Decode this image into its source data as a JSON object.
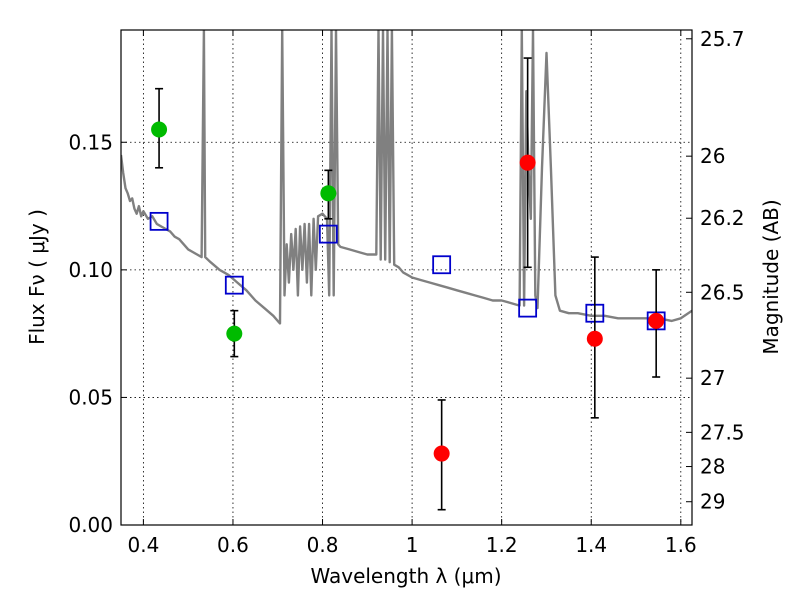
{
  "chart_data": {
    "type": "scatter",
    "title": "",
    "xlabel": "Wavelength  λ (μm)",
    "ylabel": "Flux  Fν  ( μJy )",
    "y2label": "Magnitude (AB)",
    "xlim": [
      0.35,
      1.625
    ],
    "ylim": [
      0.0,
      0.194
    ],
    "grid": true,
    "xticks": [
      {
        "value": 0.4,
        "label": "0.4"
      },
      {
        "value": 0.6,
        "label": "0.6"
      },
      {
        "value": 0.8,
        "label": "0.8"
      },
      {
        "value": 1.0,
        "label": "1"
      },
      {
        "value": 1.2,
        "label": "1.2"
      },
      {
        "value": 1.4,
        "label": "1.4"
      },
      {
        "value": 1.6,
        "label": "1.6"
      }
    ],
    "yticks": [
      {
        "value": 0.0,
        "label": "0.00"
      },
      {
        "value": 0.05,
        "label": "0.05"
      },
      {
        "value": 0.1,
        "label": "0.10"
      },
      {
        "value": 0.15,
        "label": "0.15"
      }
    ],
    "magnitude_ticks": [
      {
        "value": 25.7,
        "label": "25.7"
      },
      {
        "value": 26.0,
        "label": "26"
      },
      {
        "value": 26.2,
        "label": "26.2"
      },
      {
        "value": 26.5,
        "label": "26.5"
      },
      {
        "value": 27.0,
        "label": "27"
      },
      {
        "value": 27.5,
        "label": "27.5"
      },
      {
        "value": 28.0,
        "label": "28"
      },
      {
        "value": 29.0,
        "label": "29"
      }
    ],
    "colors": {
      "model": "#808080",
      "green": "#00bb00",
      "red": "#ff0000",
      "model_squares": "#0000cc",
      "errorbar": "#000000"
    },
    "series": [
      {
        "type": "line",
        "color": "#808080",
        "points": [
          [
            0.35,
            0.145
          ],
          [
            0.355,
            0.138
          ],
          [
            0.36,
            0.132
          ],
          [
            0.365,
            0.13
          ],
          [
            0.37,
            0.127
          ],
          [
            0.375,
            0.128
          ],
          [
            0.38,
            0.124
          ],
          [
            0.385,
            0.122
          ],
          [
            0.39,
            0.125
          ],
          [
            0.395,
            0.121
          ],
          [
            0.4,
            0.123
          ],
          [
            0.41,
            0.12
          ],
          [
            0.42,
            0.121
          ],
          [
            0.43,
            0.118
          ],
          [
            0.44,
            0.117
          ],
          [
            0.45,
            0.116
          ],
          [
            0.46,
            0.115
          ],
          [
            0.47,
            0.113
          ],
          [
            0.48,
            0.112
          ],
          [
            0.49,
            0.11
          ],
          [
            0.5,
            0.108
          ],
          [
            0.51,
            0.107
          ],
          [
            0.52,
            0.106
          ],
          [
            0.53,
            0.105
          ],
          [
            0.535,
            0.194
          ],
          [
            0.538,
            0.105
          ],
          [
            0.55,
            0.103
          ],
          [
            0.57,
            0.1
          ],
          [
            0.59,
            0.098
          ],
          [
            0.61,
            0.095
          ],
          [
            0.63,
            0.092
          ],
          [
            0.65,
            0.088
          ],
          [
            0.67,
            0.085
          ],
          [
            0.69,
            0.082
          ],
          [
            0.7,
            0.08
          ],
          [
            0.705,
            0.079
          ],
          [
            0.71,
            0.194
          ],
          [
            0.715,
            0.09
          ],
          [
            0.72,
            0.11
          ],
          [
            0.725,
            0.095
          ],
          [
            0.73,
            0.114
          ],
          [
            0.735,
            0.1
          ],
          [
            0.74,
            0.116
          ],
          [
            0.745,
            0.09
          ],
          [
            0.75,
            0.117
          ],
          [
            0.755,
            0.1
          ],
          [
            0.76,
            0.118
          ],
          [
            0.765,
            0.095
          ],
          [
            0.77,
            0.118
          ],
          [
            0.775,
            0.09
          ],
          [
            0.78,
            0.12
          ],
          [
            0.785,
            0.1
          ],
          [
            0.79,
            0.121
          ],
          [
            0.8,
            0.122
          ],
          [
            0.81,
            0.12
          ],
          [
            0.815,
            0.09
          ],
          [
            0.82,
            0.194
          ],
          [
            0.825,
            0.09
          ],
          [
            0.83,
            0.194
          ],
          [
            0.835,
            0.11
          ],
          [
            0.84,
            0.109
          ],
          [
            0.86,
            0.108
          ],
          [
            0.88,
            0.107
          ],
          [
            0.9,
            0.106
          ],
          [
            0.92,
            0.106
          ],
          [
            0.925,
            0.194
          ],
          [
            0.93,
            0.104
          ],
          [
            0.935,
            0.194
          ],
          [
            0.94,
            0.104
          ],
          [
            0.945,
            0.194
          ],
          [
            0.95,
            0.103
          ],
          [
            0.955,
            0.194
          ],
          [
            0.96,
            0.102
          ],
          [
            0.97,
            0.101
          ],
          [
            0.98,
            0.099
          ],
          [
            0.99,
            0.098
          ],
          [
            1.0,
            0.097
          ],
          [
            1.02,
            0.096
          ],
          [
            1.04,
            0.095
          ],
          [
            1.06,
            0.094
          ],
          [
            1.08,
            0.093
          ],
          [
            1.1,
            0.092
          ],
          [
            1.12,
            0.091
          ],
          [
            1.14,
            0.09
          ],
          [
            1.16,
            0.089
          ],
          [
            1.18,
            0.088
          ],
          [
            1.2,
            0.088
          ],
          [
            1.22,
            0.087
          ],
          [
            1.24,
            0.086
          ],
          [
            1.245,
            0.194
          ],
          [
            1.25,
            0.086
          ],
          [
            1.255,
            0.17
          ],
          [
            1.26,
            0.14
          ],
          [
            1.265,
            0.12
          ],
          [
            1.27,
            0.194
          ],
          [
            1.275,
            0.09
          ],
          [
            1.28,
            0.085
          ],
          [
            1.29,
            0.14
          ],
          [
            1.3,
            0.185
          ],
          [
            1.31,
            0.14
          ],
          [
            1.32,
            0.09
          ],
          [
            1.33,
            0.084
          ],
          [
            1.35,
            0.083
          ],
          [
            1.37,
            0.083
          ],
          [
            1.4,
            0.082
          ],
          [
            1.43,
            0.082
          ],
          [
            1.46,
            0.081
          ],
          [
            1.49,
            0.081
          ],
          [
            1.52,
            0.081
          ],
          [
            1.55,
            0.081
          ],
          [
            1.58,
            0.08
          ],
          [
            1.6,
            0.081
          ],
          [
            1.625,
            0.084
          ]
        ]
      },
      {
        "type": "scatter",
        "marker": "square",
        "color": "#0000cc",
        "points": [
          {
            "x": 0.435,
            "y": 0.119
          },
          {
            "x": 0.603,
            "y": 0.094
          },
          {
            "x": 0.813,
            "y": 0.114
          },
          {
            "x": 1.066,
            "y": 0.102
          },
          {
            "x": 1.258,
            "y": 0.085
          },
          {
            "x": 1.408,
            "y": 0.083
          },
          {
            "x": 1.545,
            "y": 0.08
          }
        ]
      },
      {
        "type": "errorbar",
        "marker": "circle",
        "color": "#00bb00",
        "points": [
          {
            "x": 0.435,
            "y": 0.155,
            "lo": 0.14,
            "hi": 0.171
          },
          {
            "x": 0.603,
            "y": 0.075,
            "lo": 0.066,
            "hi": 0.084
          },
          {
            "x": 0.813,
            "y": 0.13,
            "lo": 0.12,
            "hi": 0.139
          }
        ]
      },
      {
        "type": "errorbar",
        "marker": "circle",
        "color": "#ff0000",
        "points": [
          {
            "x": 1.066,
            "y": 0.028,
            "lo": 0.006,
            "hi": 0.049
          },
          {
            "x": 1.258,
            "y": 0.142,
            "lo": 0.101,
            "hi": 0.183
          },
          {
            "x": 1.408,
            "y": 0.073,
            "lo": 0.042,
            "hi": 0.105
          },
          {
            "x": 1.545,
            "y": 0.08,
            "lo": 0.058,
            "hi": 0.1
          }
        ]
      }
    ]
  }
}
